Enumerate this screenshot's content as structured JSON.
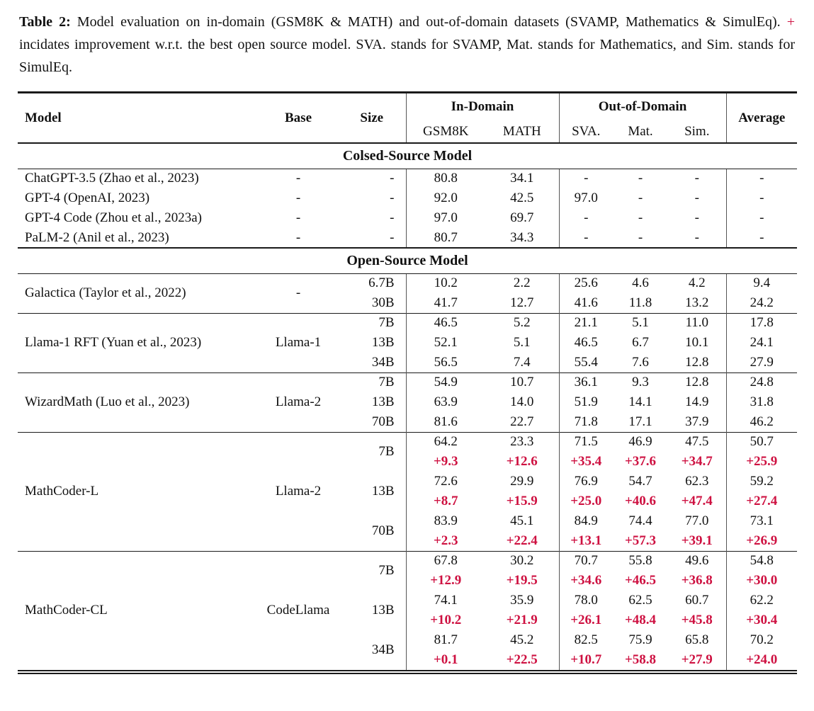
{
  "caption": {
    "label": "Table 2:",
    "before_plus": " Model evaluation on in-domain (GSM8K & MATH) and out-of-domain datasets (SVAMP, Mathematics & SimulEq). ",
    "plus": "+",
    "after_plus": " incidates improvement w.r.t. the best open source model. SVA. stands for SVAMP, Mat. stands for Mathematics, and Sim. stands for SimulEq."
  },
  "colors": {
    "delta_red": "#ce1141",
    "rule": "#1a1a1a",
    "vline": "#555555"
  },
  "table": {
    "header": {
      "model": "Model",
      "base": "Base",
      "size": "Size",
      "in_domain": "In-Domain",
      "out_of_domain": "Out-of-Domain",
      "average": "Average",
      "sub": [
        "GSM8K",
        "MATH",
        "SVA.",
        "Mat.",
        "Sim."
      ]
    },
    "sections": [
      {
        "title": "Colsed-Source Model",
        "groups": [
          {
            "model": "ChatGPT-3.5 (Zhao et al., 2023)",
            "base": "-",
            "rows": [
              {
                "size": "-",
                "values": [
                  "80.8",
                  "34.1",
                  "-",
                  "-",
                  "-",
                  "-"
                ]
              }
            ]
          },
          {
            "model": "GPT-4 (OpenAI, 2023)",
            "base": "-",
            "rows": [
              {
                "size": "-",
                "values": [
                  "92.0",
                  "42.5",
                  "97.0",
                  "-",
                  "-",
                  "-"
                ]
              }
            ]
          },
          {
            "model": "GPT-4 Code (Zhou et al., 2023a)",
            "base": "-",
            "rows": [
              {
                "size": "-",
                "values": [
                  "97.0",
                  "69.7",
                  "-",
                  "-",
                  "-",
                  "-"
                ]
              }
            ]
          },
          {
            "model": "PaLM-2 (Anil et al., 2023)",
            "base": "-",
            "rows": [
              {
                "size": "-",
                "values": [
                  "80.7",
                  "34.3",
                  "-",
                  "-",
                  "-",
                  "-"
                ]
              }
            ]
          }
        ]
      },
      {
        "title": "Open-Source Model",
        "groups": [
          {
            "model": "Galactica (Taylor et al., 2022)",
            "base": "-",
            "rows": [
              {
                "size": "6.7B",
                "values": [
                  "10.2",
                  "2.2",
                  "25.6",
                  "4.6",
                  "4.2",
                  "9.4"
                ]
              },
              {
                "size": "30B",
                "values": [
                  "41.7",
                  "12.7",
                  "41.6",
                  "11.8",
                  "13.2",
                  "24.2"
                ]
              }
            ]
          },
          {
            "model": "Llama-1 RFT (Yuan et al., 2023)",
            "base": "Llama-1",
            "rows": [
              {
                "size": "7B",
                "values": [
                  "46.5",
                  "5.2",
                  "21.1",
                  "5.1",
                  "11.0",
                  "17.8"
                ]
              },
              {
                "size": "13B",
                "values": [
                  "52.1",
                  "5.1",
                  "46.5",
                  "6.7",
                  "10.1",
                  "24.1"
                ]
              },
              {
                "size": "34B",
                "values": [
                  "56.5",
                  "7.4",
                  "55.4",
                  "7.6",
                  "12.8",
                  "27.9"
                ]
              }
            ]
          },
          {
            "model": "WizardMath (Luo et al., 2023)",
            "base": "Llama-2",
            "rows": [
              {
                "size": "7B",
                "values": [
                  "54.9",
                  "10.7",
                  "36.1",
                  "9.3",
                  "12.8",
                  "24.8"
                ]
              },
              {
                "size": "13B",
                "values": [
                  "63.9",
                  "14.0",
                  "51.9",
                  "14.1",
                  "14.9",
                  "31.8"
                ]
              },
              {
                "size": "70B",
                "values": [
                  "81.6",
                  "22.7",
                  "71.8",
                  "17.1",
                  "37.9",
                  "46.2"
                ]
              }
            ]
          },
          {
            "model": "MathCoder-L",
            "base": "Llama-2",
            "rows": [
              {
                "size": "7B",
                "values": [
                  "64.2",
                  "23.3",
                  "71.5",
                  "46.9",
                  "47.5",
                  "50.7"
                ],
                "delta": [
                  "+9.3",
                  "+12.6",
                  "+35.4",
                  "+37.6",
                  "+34.7",
                  "+25.9"
                ]
              },
              {
                "size": "13B",
                "values": [
                  "72.6",
                  "29.9",
                  "76.9",
                  "54.7",
                  "62.3",
                  "59.2"
                ],
                "delta": [
                  "+8.7",
                  "+15.9",
                  "+25.0",
                  "+40.6",
                  "+47.4",
                  "+27.4"
                ]
              },
              {
                "size": "70B",
                "values": [
                  "83.9",
                  "45.1",
                  "84.9",
                  "74.4",
                  "77.0",
                  "73.1"
                ],
                "delta": [
                  "+2.3",
                  "+22.4",
                  "+13.1",
                  "+57.3",
                  "+39.1",
                  "+26.9"
                ]
              }
            ]
          },
          {
            "model": "MathCoder-CL",
            "base": "CodeLlama",
            "rows": [
              {
                "size": "7B",
                "values": [
                  "67.8",
                  "30.2",
                  "70.7",
                  "55.8",
                  "49.6",
                  "54.8"
                ],
                "delta": [
                  "+12.9",
                  "+19.5",
                  "+34.6",
                  "+46.5",
                  "+36.8",
                  "+30.0"
                ]
              },
              {
                "size": "13B",
                "values": [
                  "74.1",
                  "35.9",
                  "78.0",
                  "62.5",
                  "60.7",
                  "62.2"
                ],
                "delta": [
                  "+10.2",
                  "+21.9",
                  "+26.1",
                  "+48.4",
                  "+45.8",
                  "+30.4"
                ]
              },
              {
                "size": "34B",
                "values": [
                  "81.7",
                  "45.2",
                  "82.5",
                  "75.9",
                  "65.8",
                  "70.2"
                ],
                "delta": [
                  "+0.1",
                  "+22.5",
                  "+10.7",
                  "+58.8",
                  "+27.9",
                  "+24.0"
                ]
              }
            ]
          }
        ]
      }
    ]
  }
}
